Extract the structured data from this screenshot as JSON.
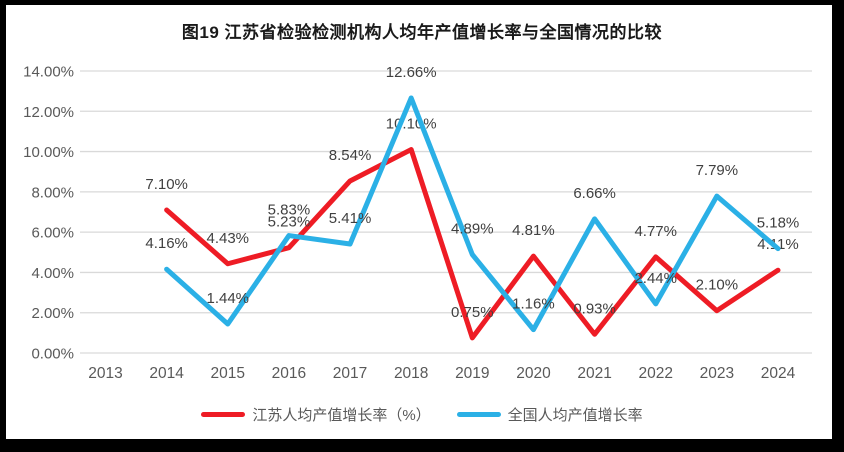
{
  "figure": {
    "title": "图19 江苏省检验检测机构人均年产值增长率与全国情况的比较"
  },
  "chart_data": {
    "type": "line",
    "title": "图19 江苏省检验检测机构人均年产值增长率与全国情况的比较",
    "categories": [
      "2013",
      "2014",
      "2015",
      "2016",
      "2017",
      "2018",
      "2019",
      "2020",
      "2021",
      "2022",
      "2023",
      "2024"
    ],
    "series": [
      {
        "id": "jiangsu",
        "name": "江苏人均产值增长率（%）",
        "color": "#ee1c25",
        "values": [
          null,
          7.1,
          4.43,
          5.23,
          8.54,
          10.1,
          0.75,
          4.81,
          0.93,
          4.77,
          2.1,
          4.11
        ]
      },
      {
        "id": "national",
        "name": "全国人均产值增长率",
        "color": "#2bb0e6",
        "values": [
          null,
          4.16,
          1.44,
          5.83,
          5.41,
          12.66,
          4.89,
          1.16,
          6.66,
          2.44,
          7.79,
          5.18
        ]
      }
    ],
    "xlabel": "",
    "ylabel": "",
    "ylim": [
      0,
      14
    ],
    "y_ticks": [
      {
        "value": 0,
        "label": "0.00%"
      },
      {
        "value": 2,
        "label": "2.00%"
      },
      {
        "value": 4,
        "label": "4.00%"
      },
      {
        "value": 6,
        "label": "6.00%"
      },
      {
        "value": 8,
        "label": "8.00%"
      },
      {
        "value": 10,
        "label": "10.00%"
      },
      {
        "value": 12,
        "label": "12.00%"
      },
      {
        "value": 14,
        "label": "14.00%"
      }
    ],
    "data_label_format": "0.00%",
    "grid": "horizontal",
    "legend_position": "bottom",
    "colors": {
      "gridline": "#d9d9d9",
      "axis_text": "#595959",
      "data_label_text": "#404040",
      "legend_text": "#595959",
      "title_text": "#1a1a1a",
      "frame": "#000000",
      "background": "#ffffff"
    }
  }
}
